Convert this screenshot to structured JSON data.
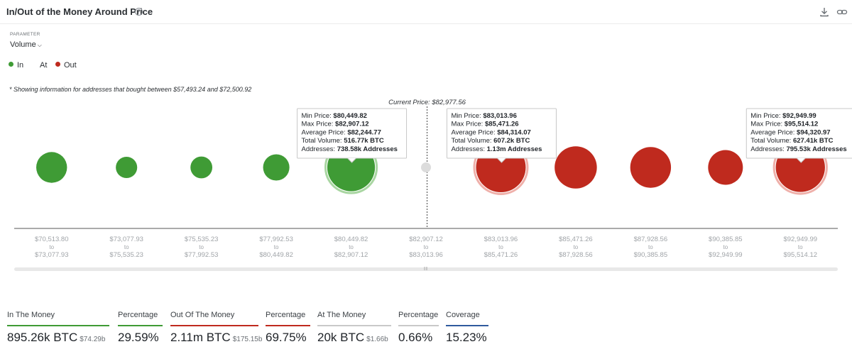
{
  "header": {
    "title": "In/Out of the Money Around Price",
    "help_icon": "?"
  },
  "parameter": {
    "label": "PARAMETER",
    "value": "Volume"
  },
  "legend": [
    {
      "label": "In",
      "color": "#3f9b35"
    },
    {
      "label": "At",
      "color": ""
    },
    {
      "label": "Out",
      "color": "#bf2a1e"
    }
  ],
  "note": "* Showing information for addresses that bought between $57,493.24 and $72,500.92",
  "chart_data": {
    "type": "bubble",
    "current_price_label": "Current Price: $82,977.56",
    "colors": {
      "in": "#3f9b35",
      "out": "#bf2a1e",
      "at": "#dcdcdc"
    },
    "bins": [
      {
        "from": "$70,513.80",
        "to": "$73,077.93",
        "status": "in",
        "size": 0.62
      },
      {
        "from": "$73,077.93",
        "to": "$75,535.23",
        "status": "in",
        "size": 0.43
      },
      {
        "from": "$75,535.23",
        "to": "$77,992.53",
        "status": "in",
        "size": 0.44
      },
      {
        "from": "$77,992.53",
        "to": "$80,449.82",
        "status": "in",
        "size": 0.53
      },
      {
        "from": "$80,449.82",
        "to": "$82,907.12",
        "status": "in",
        "size": 0.96,
        "highlight": true
      },
      {
        "from": "$82,907.12",
        "to": "$83,013.96",
        "status": "at",
        "size": 0.2
      },
      {
        "from": "$83,013.96",
        "to": "$85,471.26",
        "status": "out",
        "size": 1.0,
        "highlight": true
      },
      {
        "from": "$85,471.26",
        "to": "$87,928.56",
        "status": "out",
        "size": 0.85
      },
      {
        "from": "$87,928.56",
        "to": "$90,385.85",
        "status": "out",
        "size": 0.82
      },
      {
        "from": "$90,385.85",
        "to": "$92,949.99",
        "status": "out",
        "size": 0.7
      },
      {
        "from": "$92,949.99",
        "to": "$95,514.12",
        "status": "out",
        "size": 0.99,
        "highlight": true
      }
    ],
    "tick_joiner": "to",
    "tooltips": [
      {
        "bin": 4,
        "lines": [
          [
            "Min Price: ",
            "$80,449.82"
          ],
          [
            "Max Price: ",
            "$82,907.12"
          ],
          [
            "Average Price: ",
            "$82,244.77"
          ],
          [
            "Total Volume: ",
            "516.77k BTC"
          ],
          [
            "Addresses: ",
            "738.58k Addresses"
          ]
        ]
      },
      {
        "bin": 6,
        "lines": [
          [
            "Min Price: ",
            "$83,013.96"
          ],
          [
            "Max Price: ",
            "$85,471.26"
          ],
          [
            "Average Price: ",
            "$84,314.07"
          ],
          [
            "Total Volume: ",
            "607.2k BTC"
          ],
          [
            "Addresses: ",
            "1.13m Addresses"
          ]
        ]
      },
      {
        "bin": 10,
        "lines": [
          [
            "Min Price: ",
            "$92,949.99"
          ],
          [
            "Max Price: ",
            "$95,514.12"
          ],
          [
            "Average Price: ",
            "$94,320.97"
          ],
          [
            "Total Volume: ",
            "627.41k BTC"
          ],
          [
            "Addresses: ",
            "795.53k Addresses"
          ]
        ]
      }
    ]
  },
  "summary": [
    {
      "label": "In The Money",
      "value": "895.26k BTC",
      "sub": "$74.29b",
      "color": "#3f9b35"
    },
    {
      "label": "Percentage",
      "value": "29.59%",
      "sub": "",
      "color": "#3f9b35"
    },
    {
      "label": "Out Of The Money",
      "value": "2.11m BTC",
      "sub": "$175.15b",
      "color": "#bf2a1e"
    },
    {
      "label": "Percentage",
      "value": "69.75%",
      "sub": "",
      "color": "#bf2a1e"
    },
    {
      "label": "At The Money",
      "value": "20k BTC",
      "sub": "$1.66b",
      "color": "#c9c9c9"
    },
    {
      "label": "Percentage",
      "value": "0.66%",
      "sub": "",
      "color": "#c9c9c9"
    },
    {
      "label": "Coverage",
      "value": "15.23%",
      "sub": "",
      "color": "#2f5a9e"
    }
  ],
  "icons": {
    "download": "download-icon",
    "link": "link-icon"
  }
}
